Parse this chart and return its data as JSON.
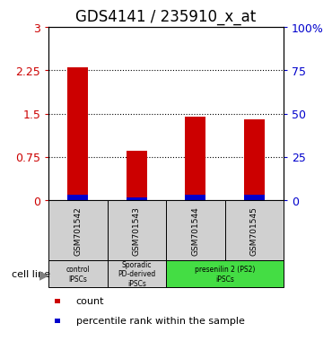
{
  "title": "GDS4141 / 235910_x_at",
  "samples": [
    "GSM701542",
    "GSM701543",
    "GSM701544",
    "GSM701545"
  ],
  "red_values": [
    2.31,
    0.85,
    1.45,
    1.4
  ],
  "blue_values": [
    0.1,
    0.05,
    0.1,
    0.1
  ],
  "ylim_left": [
    0,
    3
  ],
  "yticks_left": [
    0,
    0.75,
    1.5,
    2.25,
    3
  ],
  "ytick_labels_left": [
    "0",
    "0.75",
    "1.5",
    "2.25",
    "3"
  ],
  "ytick_labels_right": [
    "0",
    "25",
    "50",
    "75",
    "100%"
  ],
  "yticks_right": [
    0,
    25,
    50,
    75,
    100
  ],
  "hlines": [
    0.75,
    1.5,
    2.25
  ],
  "bar_width": 0.35,
  "red_color": "#cc0000",
  "blue_color": "#0000cc",
  "tick_color_left": "#cc0000",
  "tick_color_right": "#0000cc",
  "legend_count_label": "count",
  "legend_pct_label": "percentile rank within the sample",
  "cell_line_label": "cell line",
  "sample_box_color": "#d0d0d0",
  "title_fontsize": 12,
  "axis_fontsize": 9,
  "group_info": [
    [
      0,
      1,
      "control\nIPSCs",
      "#d0d0d0"
    ],
    [
      1,
      2,
      "Sporadic\nPD-derived\niPSCs",
      "#d0d0d0"
    ],
    [
      2,
      4,
      "presenilin 2 (PS2)\niPSCs",
      "#44dd44"
    ]
  ]
}
